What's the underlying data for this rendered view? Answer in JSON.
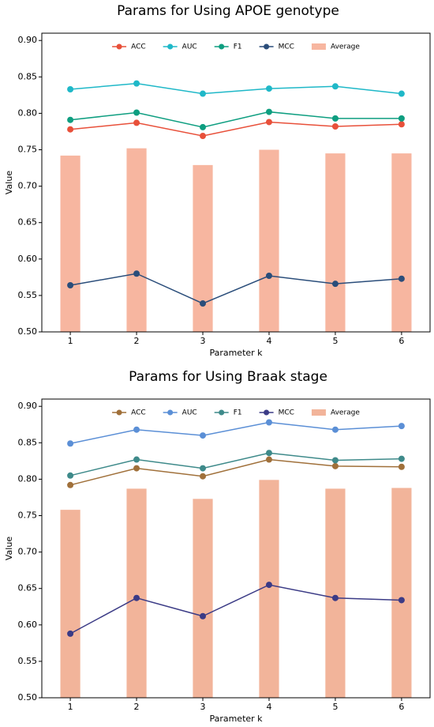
{
  "chart_data": [
    {
      "type": "line",
      "title": "Params for Using APOE genotype",
      "x_label": "Parameter k",
      "y_label": "Value",
      "x": [
        1,
        2,
        3,
        4,
        5,
        6
      ],
      "xlim": [
        0.57,
        6.43
      ],
      "xticks": [
        1,
        2,
        3,
        4,
        5,
        6
      ],
      "ylim": [
        0.5,
        0.91
      ],
      "yticks": [
        {
          "value": 0.5,
          "label": "0.50"
        },
        {
          "value": 0.55,
          "label": "0.55"
        },
        {
          "value": 0.6,
          "label": "0.60"
        },
        {
          "value": 0.65,
          "label": "0.65"
        },
        {
          "value": 0.7,
          "label": "0.70"
        },
        {
          "value": 0.75,
          "label": "0.75"
        },
        {
          "value": 0.8,
          "label": "0.80"
        },
        {
          "value": 0.85,
          "label": "0.85"
        },
        {
          "value": 0.9,
          "label": "0.90"
        }
      ],
      "legend": "upper center",
      "grid": false,
      "series": [
        {
          "name": "ACC",
          "type": "line",
          "color": "#e8503a",
          "values": [
            0.778,
            0.787,
            0.769,
            0.788,
            0.782,
            0.785
          ]
        },
        {
          "name": "AUC",
          "type": "line",
          "color": "#1fb8c8",
          "values": [
            0.833,
            0.841,
            0.827,
            0.834,
            0.837,
            0.827
          ]
        },
        {
          "name": "F1",
          "type": "line",
          "color": "#0e9e80",
          "values": [
            0.791,
            0.801,
            0.781,
            0.802,
            0.793,
            0.793
          ]
        },
        {
          "name": "MCC",
          "type": "line",
          "color": "#2a4d7a",
          "values": [
            0.564,
            0.58,
            0.539,
            0.577,
            0.566,
            0.573
          ]
        },
        {
          "name": "Average",
          "type": "bar",
          "color": "#f7b6a0",
          "values": [
            0.742,
            0.752,
            0.729,
            0.75,
            0.745,
            0.745
          ]
        }
      ]
    },
    {
      "type": "line",
      "title": "Params for Using Braak stage",
      "x_label": "Parameter k",
      "y_label": "Value",
      "x": [
        1,
        2,
        3,
        4,
        5,
        6
      ],
      "xlim": [
        0.57,
        6.43
      ],
      "xticks": [
        1,
        2,
        3,
        4,
        5,
        6
      ],
      "ylim": [
        0.5,
        0.91
      ],
      "yticks": [
        {
          "value": 0.5,
          "label": "0.50"
        },
        {
          "value": 0.55,
          "label": "0.55"
        },
        {
          "value": 0.6,
          "label": "0.60"
        },
        {
          "value": 0.65,
          "label": "0.65"
        },
        {
          "value": 0.7,
          "label": "0.70"
        },
        {
          "value": 0.75,
          "label": "0.75"
        },
        {
          "value": 0.8,
          "label": "0.80"
        },
        {
          "value": 0.85,
          "label": "0.85"
        },
        {
          "value": 0.9,
          "label": "0.90"
        }
      ],
      "legend": "upper center",
      "grid": false,
      "series": [
        {
          "name": "ACC",
          "type": "line",
          "color": "#a0703a",
          "values": [
            0.792,
            0.815,
            0.804,
            0.827,
            0.818,
            0.817
          ]
        },
        {
          "name": "AUC",
          "type": "line",
          "color": "#5b8fd6",
          "values": [
            0.849,
            0.868,
            0.86,
            0.878,
            0.868,
            0.873
          ]
        },
        {
          "name": "F1",
          "type": "line",
          "color": "#3e8a8a",
          "values": [
            0.805,
            0.827,
            0.815,
            0.836,
            0.826,
            0.828
          ]
        },
        {
          "name": "MCC",
          "type": "line",
          "color": "#3b3b86",
          "values": [
            0.588,
            0.637,
            0.612,
            0.655,
            0.637,
            0.634
          ]
        },
        {
          "name": "Average",
          "type": "bar",
          "color": "#f2b49a",
          "values": [
            0.758,
            0.787,
            0.773,
            0.799,
            0.787,
            0.788
          ]
        }
      ]
    }
  ]
}
